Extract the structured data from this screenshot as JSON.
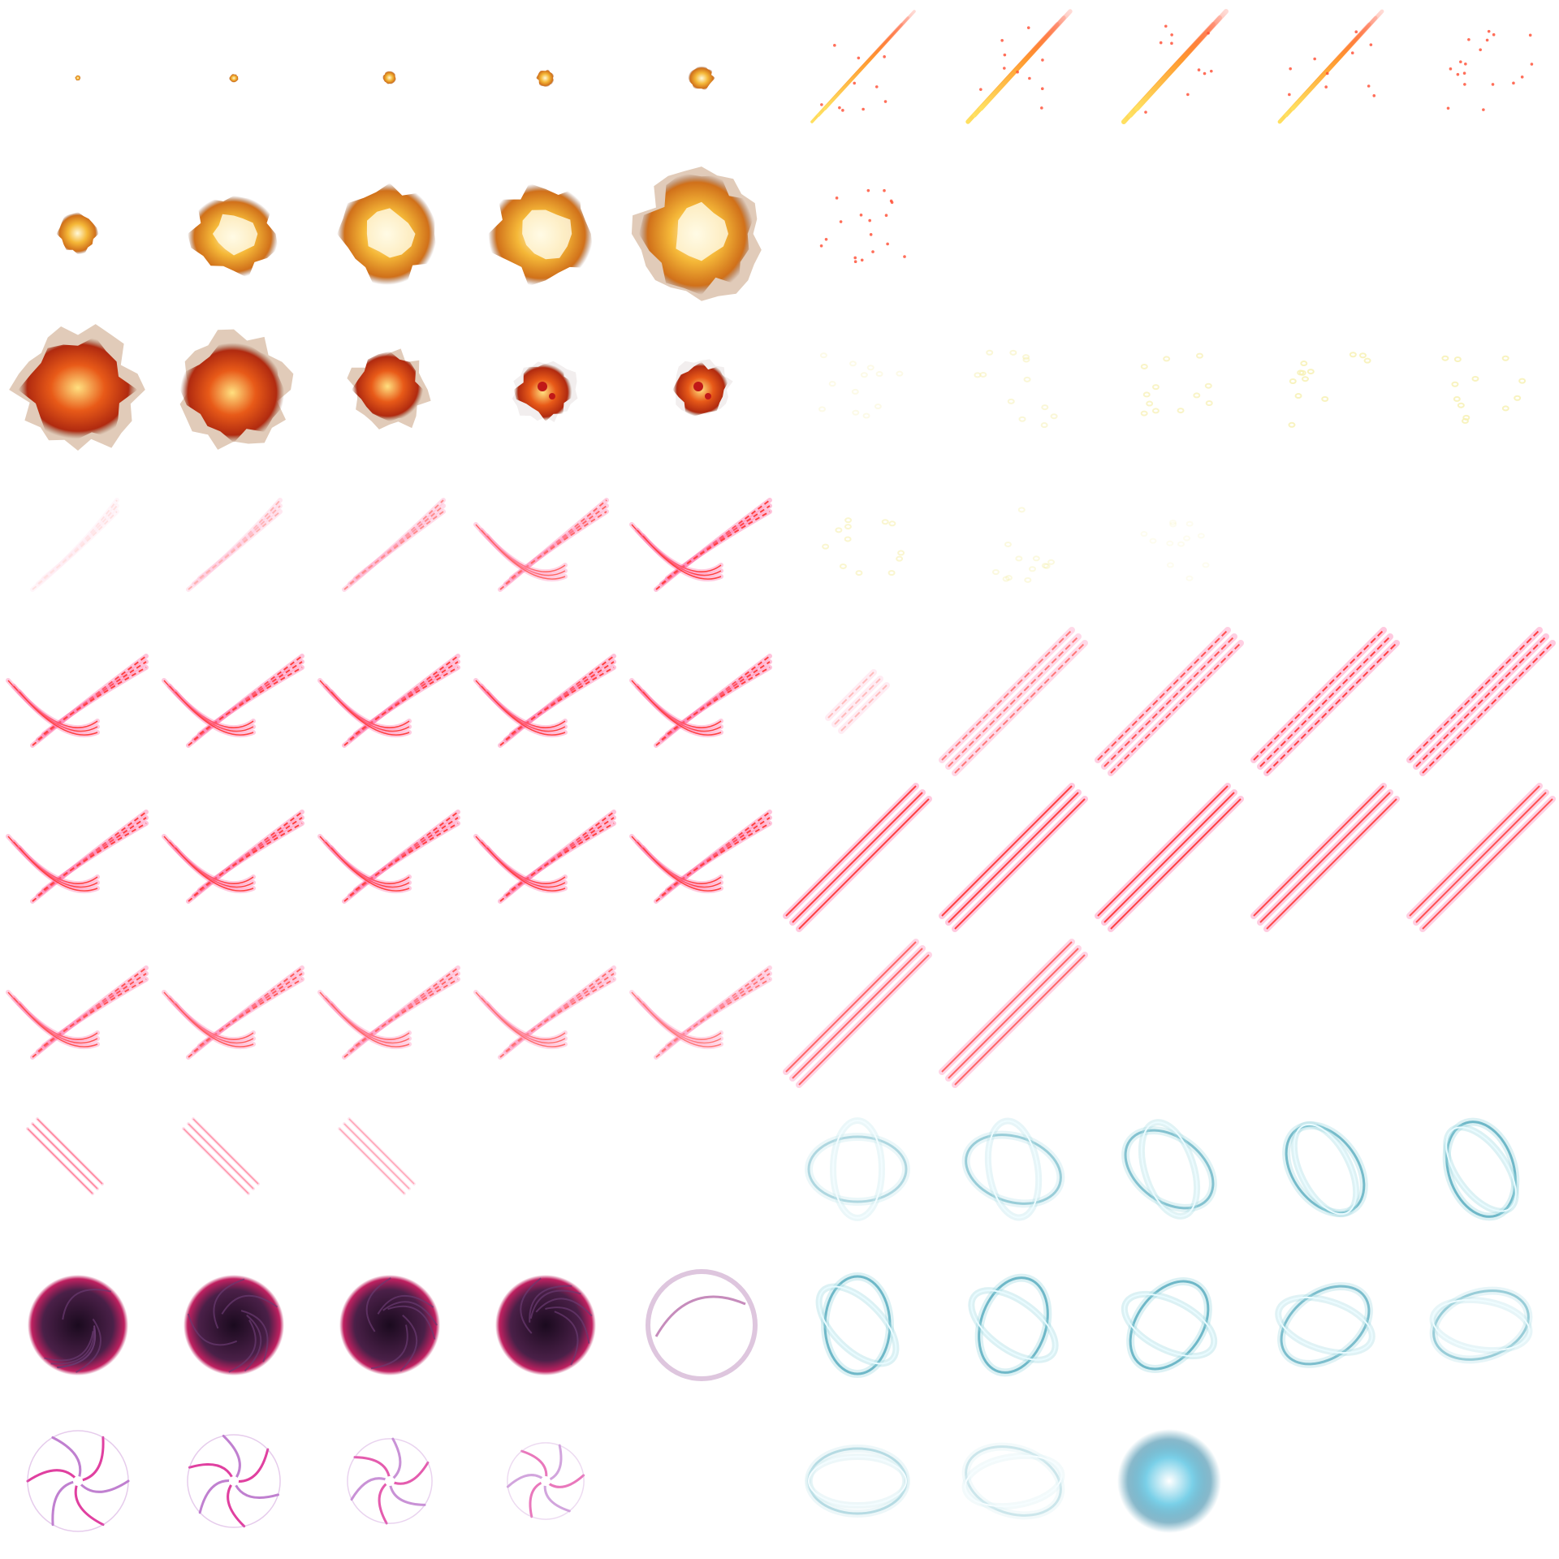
{
  "sheet": {
    "columns": 10,
    "rows": 10,
    "background": "#ffffff",
    "sequences": [
      {
        "name": "explosion",
        "colors": {
          "core": "#fff8d8",
          "mid": "#f5b838",
          "edge": "#d0701a",
          "smoke": "#8a5a40"
        },
        "frames": [
          0.05,
          0.08,
          0.12,
          0.16,
          0.22,
          0.35,
          0.75,
          0.85,
          0.92,
          1.0,
          0.95,
          0.85,
          0.6,
          0.5,
          0.45
        ],
        "cells": [
          [
            0,
            0
          ],
          [
            0,
            1
          ],
          [
            0,
            2
          ],
          [
            0,
            3
          ],
          [
            0,
            4
          ],
          [
            1,
            0
          ],
          [
            1,
            1
          ],
          [
            1,
            2
          ],
          [
            1,
            3
          ],
          [
            1,
            4
          ],
          [
            2,
            0
          ],
          [
            2,
            1
          ],
          [
            2,
            2
          ],
          [
            2,
            3
          ],
          [
            2,
            4
          ]
        ]
      },
      {
        "name": "flame-streak",
        "colors": {
          "core": "#ffe060",
          "mid": "#ff9a30",
          "edge": "#ff4a30"
        },
        "frames": [
          0.6,
          0.9,
          1.0,
          0.8,
          0.35,
          0.25
        ],
        "cells": [
          [
            0,
            5
          ],
          [
            0,
            6
          ],
          [
            0,
            7
          ],
          [
            0,
            8
          ],
          [
            0,
            9
          ],
          [
            1,
            5
          ]
        ]
      },
      {
        "name": "sparkles",
        "colors": {
          "dot": "#f6f0b0"
        },
        "frames": [
          0.3,
          0.5,
          0.7,
          0.8,
          0.8,
          0.6,
          0.4,
          0.2
        ],
        "cells": [
          [
            2,
            5
          ],
          [
            2,
            6
          ],
          [
            2,
            7
          ],
          [
            2,
            8
          ],
          [
            2,
            9
          ],
          [
            3,
            5
          ],
          [
            3,
            6
          ],
          [
            3,
            7
          ]
        ]
      },
      {
        "name": "claw-cross",
        "colors": {
          "core": "#ff4040",
          "glow": "#ff7ab0"
        },
        "frames": [
          0.15,
          0.4,
          0.6,
          0.8,
          1.0,
          1.0,
          1.0,
          1.0,
          1.0,
          1.0,
          1.0,
          1.0,
          1.0,
          1.0,
          1.0,
          0.9,
          0.85,
          0.8,
          0.75,
          0.7
        ],
        "cells": [
          [
            3,
            0
          ],
          [
            3,
            1
          ],
          [
            3,
            2
          ],
          [
            3,
            3
          ],
          [
            3,
            4
          ],
          [
            4,
            0
          ],
          [
            4,
            1
          ],
          [
            4,
            2
          ],
          [
            4,
            3
          ],
          [
            4,
            4
          ],
          [
            5,
            0
          ],
          [
            5,
            1
          ],
          [
            5,
            2
          ],
          [
            5,
            3
          ],
          [
            5,
            4
          ],
          [
            6,
            0
          ],
          [
            6,
            1
          ],
          [
            6,
            2
          ],
          [
            6,
            3
          ],
          [
            6,
            4
          ]
        ]
      },
      {
        "name": "claw-single",
        "colors": {
          "core": "#ff4040",
          "glow": "#ff7ab0"
        },
        "frames": [
          0.35,
          0.7,
          0.9,
          1.0,
          1.0,
          1.0,
          1.0,
          1.0,
          0.95,
          0.9,
          0.8,
          0.8
        ],
        "cells": [
          [
            4,
            5
          ],
          [
            4,
            6
          ],
          [
            4,
            7
          ],
          [
            4,
            8
          ],
          [
            4,
            9
          ],
          [
            5,
            5
          ],
          [
            5,
            6
          ],
          [
            5,
            7
          ],
          [
            5,
            8
          ],
          [
            5,
            9
          ],
          [
            6,
            5
          ],
          [
            6,
            6
          ]
        ]
      },
      {
        "name": "claw-fade",
        "colors": {
          "core": "#ff4a6a",
          "glow": "#ff9ac0"
        },
        "frames": [
          0.7,
          0.6,
          0.5
        ],
        "cells": [
          [
            7,
            0
          ],
          [
            7,
            1
          ],
          [
            7,
            2
          ]
        ]
      },
      {
        "name": "dark-vortex",
        "colors": {
          "core": "#1a0a1e",
          "mid": "#4a2048",
          "edge": "#c02060",
          "ring": "#c8a0c8"
        },
        "frames": [
          1.0,
          1.0,
          1.0,
          1.0,
          0.0
        ],
        "cells": [
          [
            8,
            0
          ],
          [
            8,
            1
          ],
          [
            8,
            2
          ],
          [
            8,
            3
          ],
          [
            8,
            4
          ]
        ]
      },
      {
        "name": "pink-swirl",
        "colors": {
          "core": "#ffffff",
          "mid": "#e040a0",
          "edge": "#c080d0"
        },
        "frames": [
          1.0,
          1.0,
          0.85,
          0.7
        ],
        "cells": [
          [
            9,
            0
          ],
          [
            9,
            1
          ],
          [
            9,
            2
          ],
          [
            9,
            3
          ]
        ]
      },
      {
        "name": "ice-ring",
        "colors": {
          "core": "#e8fbff",
          "mid": "#9ad8e0",
          "edge": "#6fb8c8"
        },
        "frames": [
          0.55,
          0.7,
          0.85,
          0.95,
          1.0,
          1.0,
          1.0,
          1.0,
          0.9,
          0.7,
          0.5,
          0.35,
          0.0
        ],
        "cells": [
          [
            7,
            5
          ],
          [
            7,
            6
          ],
          [
            7,
            7
          ],
          [
            7,
            8
          ],
          [
            7,
            9
          ],
          [
            8,
            5
          ],
          [
            8,
            6
          ],
          [
            8,
            7
          ],
          [
            8,
            8
          ],
          [
            8,
            9
          ],
          [
            9,
            5
          ],
          [
            9,
            6
          ],
          [
            9,
            7
          ]
        ]
      }
    ]
  }
}
